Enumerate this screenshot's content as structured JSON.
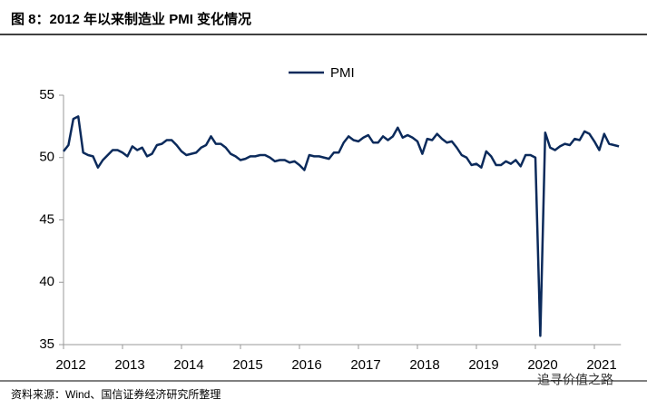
{
  "chart_data": {
    "type": "line",
    "title": "图 8：2012 年以来制造业 PMI 变化情况",
    "source": "资料来源：Wind、国信证券经济研究所整理",
    "watermark": "追寻价值之路",
    "x": [
      "2012-01",
      "2012-02",
      "2012-03",
      "2012-04",
      "2012-05",
      "2012-06",
      "2012-07",
      "2012-08",
      "2012-09",
      "2012-10",
      "2012-11",
      "2012-12",
      "2013-01",
      "2013-02",
      "2013-03",
      "2013-04",
      "2013-05",
      "2013-06",
      "2013-07",
      "2013-08",
      "2013-09",
      "2013-10",
      "2013-11",
      "2013-12",
      "2014-01",
      "2014-02",
      "2014-03",
      "2014-04",
      "2014-05",
      "2014-06",
      "2014-07",
      "2014-08",
      "2014-09",
      "2014-10",
      "2014-11",
      "2014-12",
      "2015-01",
      "2015-02",
      "2015-03",
      "2015-04",
      "2015-05",
      "2015-06",
      "2015-07",
      "2015-08",
      "2015-09",
      "2015-10",
      "2015-11",
      "2015-12",
      "2016-01",
      "2016-02",
      "2016-03",
      "2016-04",
      "2016-05",
      "2016-06",
      "2016-07",
      "2016-08",
      "2016-09",
      "2016-10",
      "2016-11",
      "2016-12",
      "2017-01",
      "2017-02",
      "2017-03",
      "2017-04",
      "2017-05",
      "2017-06",
      "2017-07",
      "2017-08",
      "2017-09",
      "2017-10",
      "2017-11",
      "2017-12",
      "2018-01",
      "2018-02",
      "2018-03",
      "2018-04",
      "2018-05",
      "2018-06",
      "2018-07",
      "2018-08",
      "2018-09",
      "2018-10",
      "2018-11",
      "2018-12",
      "2019-01",
      "2019-02",
      "2019-03",
      "2019-04",
      "2019-05",
      "2019-06",
      "2019-07",
      "2019-08",
      "2019-09",
      "2019-10",
      "2019-11",
      "2019-12",
      "2020-01",
      "2020-02",
      "2020-03",
      "2020-04",
      "2020-05",
      "2020-06",
      "2020-07",
      "2020-08",
      "2020-09",
      "2020-10",
      "2020-11",
      "2020-12",
      "2021-01",
      "2021-02",
      "2021-03",
      "2021-04",
      "2021-05",
      "2021-06"
    ],
    "series": [
      {
        "name": "PMI",
        "color": "#0b2a5b",
        "values": [
          50.5,
          51.0,
          53.1,
          53.3,
          50.4,
          50.2,
          50.1,
          49.2,
          49.8,
          50.2,
          50.6,
          50.6,
          50.4,
          50.1,
          50.9,
          50.6,
          50.8,
          50.1,
          50.3,
          51.0,
          51.1,
          51.4,
          51.4,
          51.0,
          50.5,
          50.2,
          50.3,
          50.4,
          50.8,
          51.0,
          51.7,
          51.1,
          51.1,
          50.8,
          50.3,
          50.1,
          49.8,
          49.9,
          50.1,
          50.1,
          50.2,
          50.2,
          50.0,
          49.7,
          49.8,
          49.8,
          49.6,
          49.7,
          49.4,
          49.0,
          50.2,
          50.1,
          50.1,
          50.0,
          49.9,
          50.4,
          50.4,
          51.2,
          51.7,
          51.4,
          51.3,
          51.6,
          51.8,
          51.2,
          51.2,
          51.7,
          51.4,
          51.7,
          52.4,
          51.6,
          51.8,
          51.6,
          51.3,
          50.3,
          51.5,
          51.4,
          51.9,
          51.5,
          51.2,
          51.3,
          50.8,
          50.2,
          50.0,
          49.4,
          49.5,
          49.2,
          50.5,
          50.1,
          49.4,
          49.4,
          49.7,
          49.5,
          49.8,
          49.3,
          50.2,
          50.2,
          50.0,
          35.7,
          52.0,
          50.8,
          50.6,
          50.9,
          51.1,
          51.0,
          51.5,
          51.4,
          52.1,
          51.9,
          51.3,
          50.6,
          51.9,
          51.1,
          51.0,
          50.9
        ]
      }
    ],
    "xlim": [
      2012,
      2021.45
    ],
    "xticks": [
      2012,
      2013,
      2014,
      2015,
      2016,
      2017,
      2018,
      2019,
      2020,
      2021
    ],
    "ylim": [
      35,
      55
    ],
    "yticks": [
      35,
      40,
      45,
      50,
      55
    ],
    "legend": "top"
  }
}
